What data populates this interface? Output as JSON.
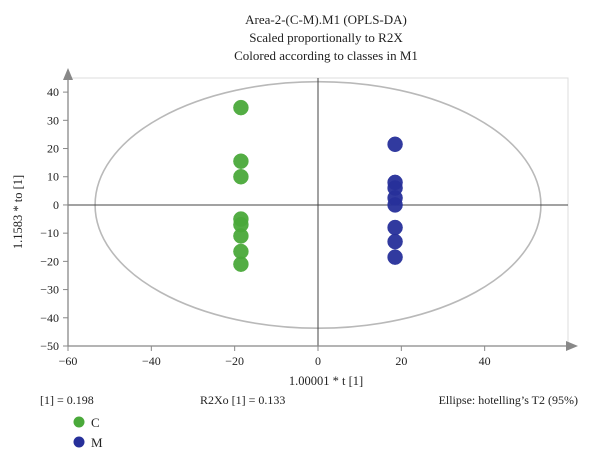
{
  "chart_data": {
    "type": "scatter",
    "title_lines": [
      "Area-2-(C-M).M1 (OPLS-DA)",
      "Scaled proportionally to R2X",
      "Colored according to classes in M1"
    ],
    "xlabel": "1.00001 * t [1]",
    "ylabel": "1.1583 * to [1]",
    "xlim": [
      -60,
      60
    ],
    "ylim": [
      -50,
      45
    ],
    "x_ticks": [
      "−60",
      "−40",
      "−20",
      "0",
      "20",
      "40"
    ],
    "y_ticks": [
      "40",
      "30",
      "20",
      "10",
      "0",
      "−10",
      "−20",
      "−30",
      "−40",
      "−50"
    ],
    "ellipse": {
      "rx": 53.5,
      "ry": 43.7,
      "label": "Ellipse: hotelling’s T2 (95%)"
    },
    "series": [
      {
        "name": "C",
        "color": "#4aa93a",
        "points": [
          [
            -18.5,
            34.5
          ],
          [
            -18.5,
            15.5
          ],
          [
            -18.5,
            10
          ],
          [
            -18.5,
            -5
          ],
          [
            -18.5,
            -7
          ],
          [
            -18.5,
            -11
          ],
          [
            -18.5,
            -16.5
          ],
          [
            -18.5,
            -21
          ]
        ]
      },
      {
        "name": "M",
        "color": "#27309a",
        "points": [
          [
            18.5,
            21.5
          ],
          [
            18.5,
            8
          ],
          [
            18.5,
            6
          ],
          [
            18.5,
            2.5
          ],
          [
            18.5,
            0
          ],
          [
            18.5,
            -8
          ],
          [
            18.5,
            -13
          ],
          [
            18.5,
            -18.5
          ]
        ]
      }
    ],
    "footer": {
      "left": "[1] = 0.198",
      "center": "R2Xo [1] = 0.133"
    },
    "legend_placement": "bottom-left",
    "grid": false
  }
}
